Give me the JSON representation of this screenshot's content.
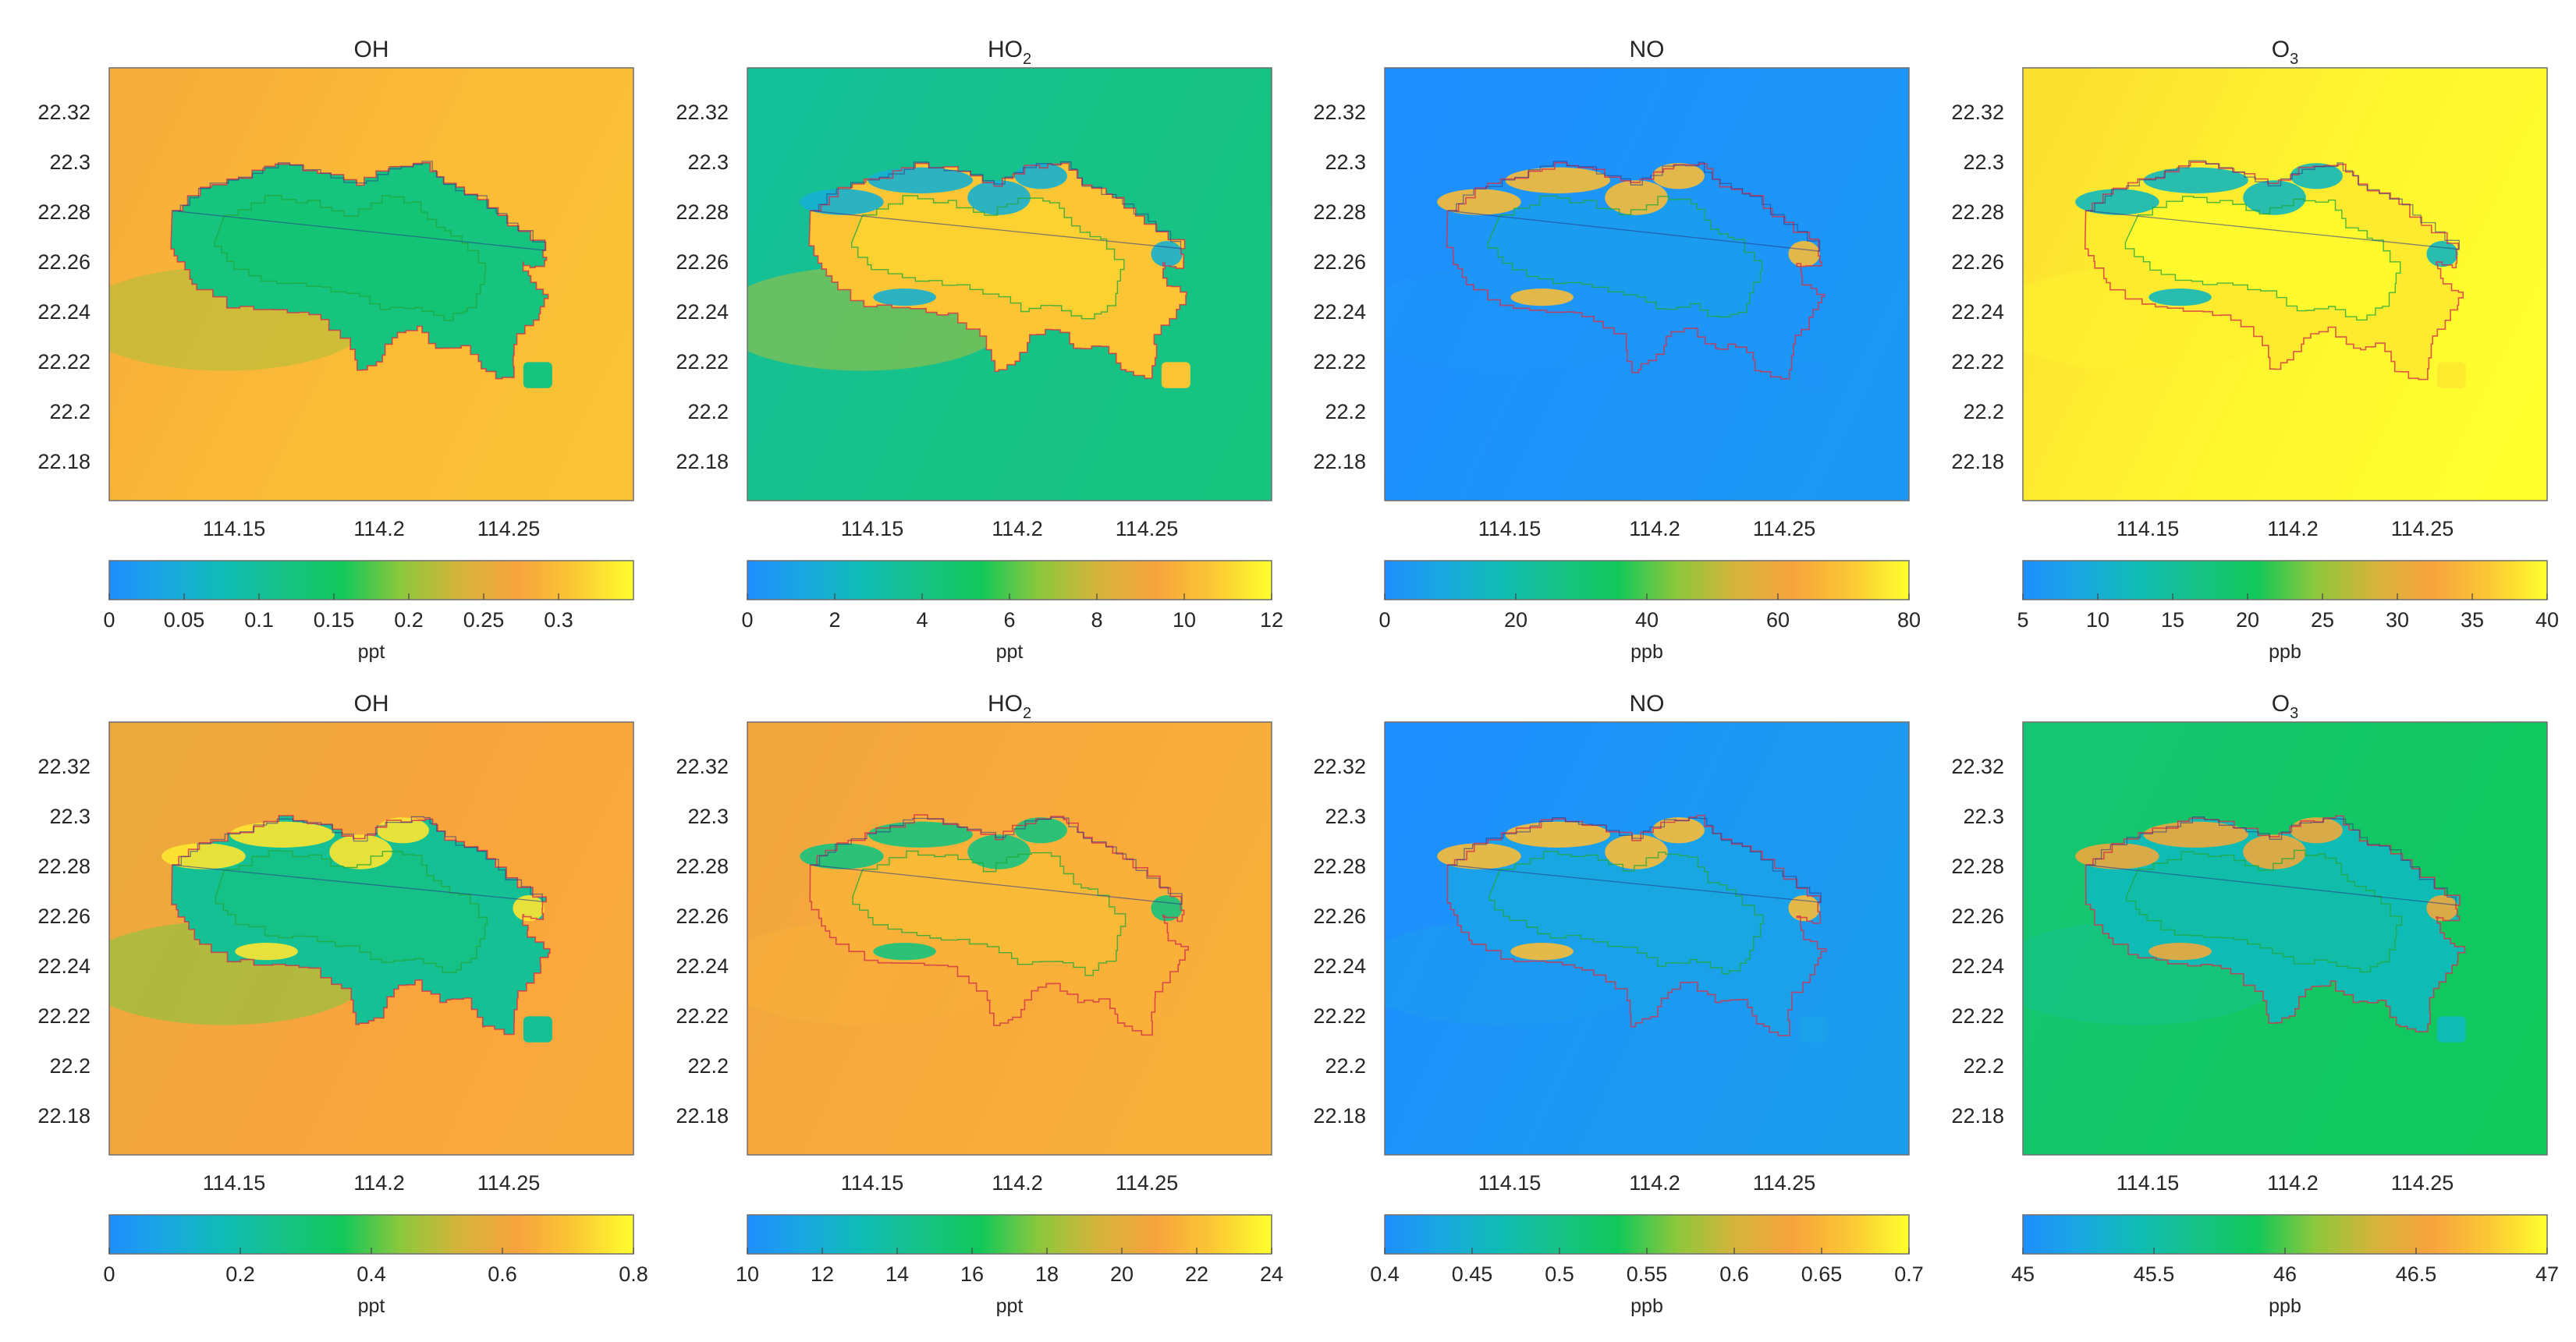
{
  "figure": {
    "colormap": [
      "#1e8fff",
      "#19a8e0",
      "#0fbcb4",
      "#17c286",
      "#10c85a",
      "#8cc83c",
      "#d4b43a",
      "#f7a33d",
      "#fbc834",
      "#ffff2e"
    ],
    "map_style": {
      "land_boundary_color_a": "#d6304a",
      "land_boundary_color_b": "#21a838",
      "land_boundary_color_c": "#2b3a8a"
    }
  },
  "chart_data": [
    {
      "type": "heatmap",
      "title_main": "OH",
      "title_sub": "",
      "xticks": [
        "114.15",
        "114.2",
        "114.25"
      ],
      "yticks": [
        "22.32",
        "22.3",
        "22.28",
        "22.26",
        "22.24",
        "22.22",
        "22.2",
        "22.18"
      ],
      "colorbar_ticks": [
        "0",
        "0.05",
        "0.1",
        "0.15",
        "0.2",
        "0.25",
        "0.3"
      ],
      "colorbar_range": [
        0,
        0.35
      ],
      "colorbar_label": "ppt",
      "background_level": 0.85,
      "land_level": 0.35,
      "hotspot_level": 0.35,
      "use_hotspot": false
    },
    {
      "type": "heatmap",
      "title_main": "HO",
      "title_sub": "2",
      "xticks": [
        "114.15",
        "114.2",
        "114.25"
      ],
      "yticks": [
        "22.32",
        "22.3",
        "22.28",
        "22.26",
        "22.24",
        "22.22",
        "22.2",
        "22.18"
      ],
      "colorbar_ticks": [
        "0",
        "2",
        "4",
        "6",
        "8",
        "10",
        "12"
      ],
      "colorbar_range": [
        0,
        12
      ],
      "colorbar_label": "ppt",
      "background_level": 0.33,
      "land_level": 0.88,
      "hotspot_level": 0.15,
      "use_hotspot": true
    },
    {
      "type": "heatmap",
      "title_main": "NO",
      "title_sub": "",
      "xticks": [
        "114.15",
        "114.2",
        "114.25"
      ],
      "yticks": [
        "22.32",
        "22.3",
        "22.28",
        "22.26",
        "22.24",
        "22.22",
        "22.2",
        "22.18"
      ],
      "colorbar_ticks": [
        "0",
        "20",
        "40",
        "60",
        "80"
      ],
      "colorbar_range": [
        0,
        80
      ],
      "colorbar_label": "ppb",
      "background_level": 0.02,
      "land_level": 0.03,
      "hotspot_level": 0.85,
      "use_hotspot": true
    },
    {
      "type": "heatmap",
      "title_main": "O",
      "title_sub": "3",
      "xticks": [
        "114.15",
        "114.2",
        "114.25"
      ],
      "yticks": [
        "22.32",
        "22.3",
        "22.28",
        "22.26",
        "22.24",
        "22.22",
        "22.2",
        "22.18"
      ],
      "colorbar_ticks": [
        "5",
        "10",
        "15",
        "20",
        "25",
        "30",
        "35",
        "40"
      ],
      "colorbar_range": [
        5,
        40
      ],
      "colorbar_label": "ppb",
      "background_level": 0.98,
      "land_level": 0.96,
      "hotspot_level": 0.2,
      "use_hotspot": true
    },
    {
      "type": "heatmap",
      "title_main": "OH",
      "title_sub": "",
      "xticks": [
        "114.15",
        "114.2",
        "114.25"
      ],
      "yticks": [
        "22.32",
        "22.3",
        "22.28",
        "22.26",
        "22.24",
        "22.22",
        "22.2",
        "22.18"
      ],
      "colorbar_ticks": [
        "0",
        "0.2",
        "0.4",
        "0.6",
        "0.8"
      ],
      "colorbar_range": [
        0,
        0.8
      ],
      "colorbar_label": "ppt",
      "background_level": 0.78,
      "land_level": 0.3,
      "hotspot_level": 0.95,
      "use_hotspot": true
    },
    {
      "type": "heatmap",
      "title_main": "HO",
      "title_sub": "2",
      "xticks": [
        "114.15",
        "114.2",
        "114.25"
      ],
      "yticks": [
        "22.32",
        "22.3",
        "22.28",
        "22.26",
        "22.24",
        "22.22",
        "22.2",
        "22.18"
      ],
      "colorbar_ticks": [
        "10",
        "12",
        "14",
        "16",
        "18",
        "20",
        "22",
        "24"
      ],
      "colorbar_range": [
        10,
        24
      ],
      "colorbar_label": "ppt",
      "background_level": 0.8,
      "land_level": 0.82,
      "hotspot_level": 0.35,
      "use_hotspot": true
    },
    {
      "type": "heatmap",
      "title_main": "NO",
      "title_sub": "",
      "xticks": [
        "114.15",
        "114.2",
        "114.25"
      ],
      "yticks": [
        "22.32",
        "22.3",
        "22.28",
        "22.26",
        "22.24",
        "22.22",
        "22.2",
        "22.18"
      ],
      "colorbar_ticks": [
        "0.4",
        "0.45",
        "0.5",
        "0.55",
        "0.6",
        "0.65",
        "0.7"
      ],
      "colorbar_range": [
        0.4,
        0.7
      ],
      "colorbar_label": "ppb",
      "background_level": 0.04,
      "land_level": 0.08,
      "hotspot_level": 0.85,
      "use_hotspot": true
    },
    {
      "type": "heatmap",
      "title_main": "O",
      "title_sub": "3",
      "xticks": [
        "114.15",
        "114.2",
        "114.25"
      ],
      "yticks": [
        "22.32",
        "22.3",
        "22.28",
        "22.26",
        "22.24",
        "22.22",
        "22.2",
        "22.18"
      ],
      "colorbar_ticks": [
        "45",
        "45.5",
        "46",
        "46.5",
        "47"
      ],
      "colorbar_range": [
        45,
        47
      ],
      "colorbar_label": "ppb",
      "background_level": 0.42,
      "land_level": 0.22,
      "hotspot_level": 0.75,
      "use_hotspot": true
    }
  ]
}
